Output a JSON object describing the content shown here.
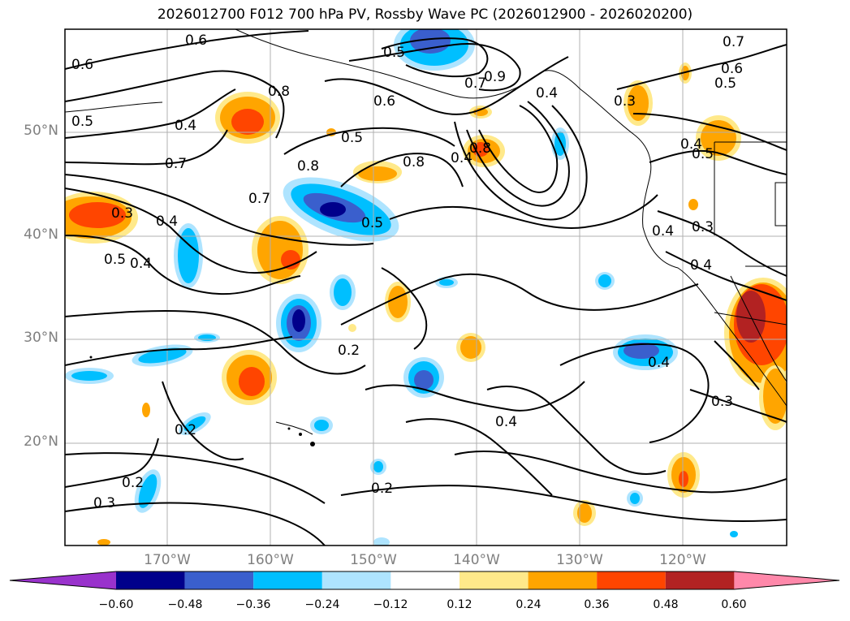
{
  "title": "2026012700 F012 700 hPa PV, Rossby Wave PC (2026012900 - 2026020200)",
  "lat_labels": [
    "50°N",
    "40°N",
    "30°N",
    "20°N"
  ],
  "lon_labels": [
    "170°W",
    "160°W",
    "150°W",
    "140°W",
    "130°W",
    "120°W"
  ],
  "colorbar": {
    "ticks": [
      "−0.60",
      "−0.48",
      "−0.36",
      "−0.24",
      "−0.12",
      "0.12",
      "0.24",
      "0.36",
      "0.48",
      "0.60"
    ],
    "colors": [
      "#9932cc",
      "#00008b",
      "#3a5fcd",
      "#00bfff",
      "#aee4ff",
      "#ffffff",
      "#ffe98a",
      "#ffa500",
      "#ff4500",
      "#b22222",
      "#ff88aa"
    ]
  },
  "contour_labels": [
    {
      "text": "0.6"
    },
    {
      "text": "0.6"
    },
    {
      "text": "0.5"
    },
    {
      "text": "0.4"
    },
    {
      "text": "0.8"
    },
    {
      "text": "0.7"
    },
    {
      "text": "0.8"
    },
    {
      "text": "0.7"
    },
    {
      "text": "0.3"
    },
    {
      "text": "0.4"
    },
    {
      "text": "0.5"
    },
    {
      "text": "0.4"
    },
    {
      "text": "0.5"
    },
    {
      "text": "0.6"
    },
    {
      "text": "0.5"
    },
    {
      "text": "0.8"
    },
    {
      "text": "0.4"
    },
    {
      "text": "0.8"
    },
    {
      "text": "0.7"
    },
    {
      "text": "0.9"
    },
    {
      "text": "0.5"
    },
    {
      "text": "0.2"
    },
    {
      "text": "0.2"
    },
    {
      "text": "0.2"
    },
    {
      "text": "0.3"
    },
    {
      "text": "0.2"
    },
    {
      "text": "0.4"
    },
    {
      "text": "0.4"
    },
    {
      "text": "0.3"
    },
    {
      "text": "0.4"
    },
    {
      "text": "0.3"
    },
    {
      "text": "0.4"
    },
    {
      "text": "0.3"
    },
    {
      "text": "0.5"
    },
    {
      "text": "0.4"
    },
    {
      "text": "0.6"
    },
    {
      "text": "0.5"
    },
    {
      "text": "0.7"
    },
    {
      "text": "0.4"
    }
  ]
}
